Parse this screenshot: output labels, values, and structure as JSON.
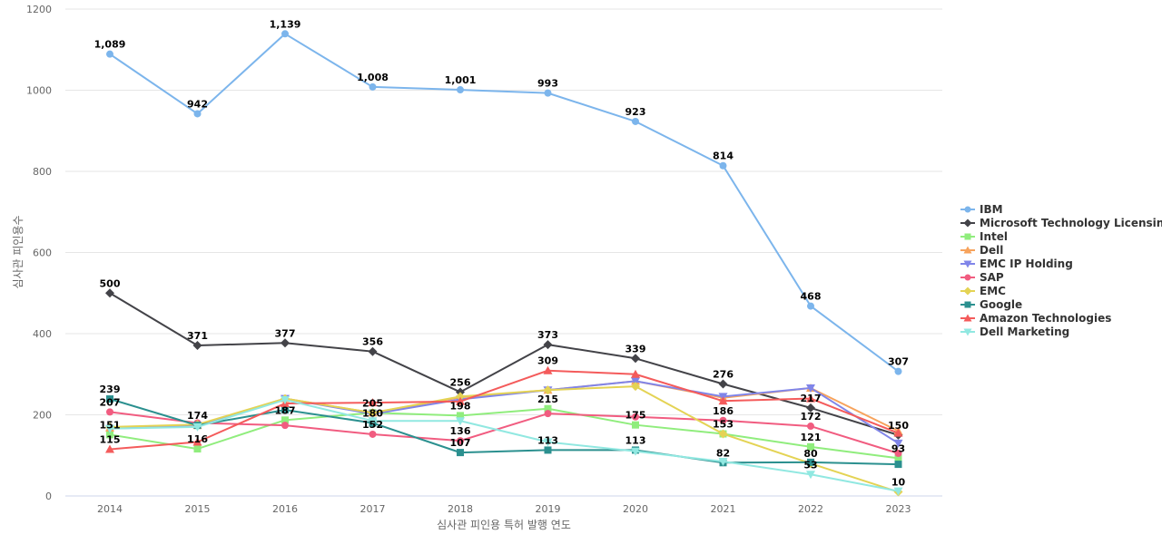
{
  "chart_data": {
    "type": "line",
    "title": "",
    "xlabel": "심사관 피인용 특허 발행 연도",
    "ylabel": "심사관 피인용수",
    "ylim": [
      0,
      1200
    ],
    "yticks": [
      0,
      200,
      400,
      600,
      800,
      1000,
      1200
    ],
    "x": [
      "2014",
      "2015",
      "2016",
      "2017",
      "2018",
      "2019",
      "2020",
      "2021",
      "2022",
      "2023"
    ],
    "legend_position": "right",
    "series": [
      {
        "name": "IBM",
        "color": "#7cb5ec",
        "marker": "circle",
        "values": [
          1089,
          942,
          1139,
          1008,
          1001,
          993,
          923,
          814,
          468,
          307
        ],
        "labels": [
          "1,089",
          "942",
          "1,139",
          "1,008",
          "1,001",
          "993",
          "923",
          "814",
          "468",
          "307"
        ]
      },
      {
        "name": "Microsoft Technology Licensing",
        "color": "#434348",
        "marker": "diamond",
        "values": [
          500,
          371,
          377,
          356,
          256,
          373,
          339,
          276,
          217,
          150
        ],
        "labels": [
          "500",
          "371",
          "377",
          "356",
          "256",
          "373",
          "339",
          "276",
          "217",
          "150"
        ]
      },
      {
        "name": "Intel",
        "color": "#90ed7d",
        "marker": "square",
        "values": [
          151,
          116,
          187,
          205,
          198,
          215,
          175,
          153,
          121,
          93
        ],
        "labels": [
          "151",
          "116",
          "187",
          "205",
          "198",
          "215",
          "175",
          "153",
          "121",
          "93"
        ]
      },
      {
        "name": "Dell",
        "color": "#f7a35c",
        "marker": "triangle",
        "values": [
          168,
          174,
          240,
          205,
          243,
          261,
          283,
          242,
          266,
          160
        ],
        "labels": [
          "",
          "",
          "",
          "",
          "",
          "",
          "",
          "",
          "",
          ""
        ]
      },
      {
        "name": "EMC IP Holding",
        "color": "#8085e9",
        "marker": "triangle-down",
        "values": [
          166,
          172,
          240,
          202,
          238,
          261,
          283,
          245,
          266,
          130
        ],
        "labels": [
          "",
          "",
          "",
          "",
          "",
          "",
          "",
          "",
          "",
          ""
        ]
      },
      {
        "name": "SAP",
        "color": "#f15c80",
        "marker": "circle",
        "values": [
          207,
          180,
          174,
          152,
          136,
          203,
          195,
          186,
          172,
          105
        ],
        "labels": [
          "207",
          "",
          "",
          "152",
          "136",
          "",
          "",
          "186",
          "172",
          ""
        ]
      },
      {
        "name": "EMC",
        "color": "#e4d354",
        "marker": "diamond",
        "values": [
          170,
          176,
          240,
          205,
          245,
          261,
          270,
          153,
          80,
          10
        ],
        "labels": [
          "",
          "",
          "",
          "",
          "",
          "",
          "",
          "",
          "80",
          "10"
        ]
      },
      {
        "name": "Google",
        "color": "#2b908f",
        "marker": "square",
        "values": [
          239,
          174,
          212,
          180,
          107,
          113,
          113,
          82,
          83,
          78
        ],
        "labels": [
          "239",
          "174",
          "",
          "180",
          "107",
          "113",
          "113",
          "82",
          "",
          ""
        ]
      },
      {
        "name": "Amazon Technologies",
        "color": "#f45b5b",
        "marker": "triangle",
        "values": [
          115,
          133,
          228,
          230,
          233,
          309,
          300,
          234,
          240,
          155
        ],
        "labels": [
          "115",
          "",
          "",
          "",
          "",
          "309",
          "",
          "",
          "",
          ""
        ]
      },
      {
        "name": "Dell Marketing",
        "color": "#91e8e1",
        "marker": "triangle-down",
        "values": [
          166,
          170,
          237,
          185,
          185,
          133,
          110,
          85,
          53,
          12
        ],
        "labels": [
          "",
          "",
          "",
          "",
          "",
          "",
          "",
          "",
          "53",
          ""
        ]
      }
    ]
  }
}
